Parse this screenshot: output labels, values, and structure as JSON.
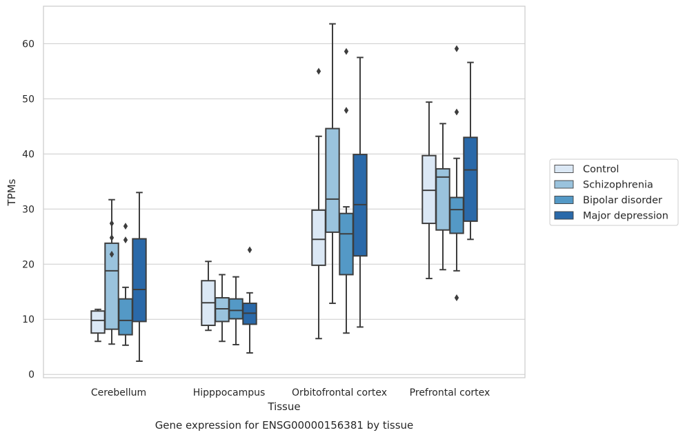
{
  "chart_data": {
    "type": "box",
    "title": "Gene expression for ENSG00000156381 by tissue",
    "xlabel": "Tissue",
    "ylabel": "TPMs",
    "ylim": [
      -0.6,
      66.8
    ],
    "yticks": [
      0,
      10,
      20,
      30,
      40,
      50,
      60
    ],
    "grid": "horizontal",
    "legend_placement": "right",
    "categories": [
      "Cerebellum",
      "Hipppocampus",
      "Orbitofrontal cortex",
      "Prefrontal cortex"
    ],
    "series": [
      {
        "name": "Control",
        "color": "#dbe8f5",
        "boxes": [
          {
            "whisker_low": 6.0,
            "q1": 7.5,
            "median": 9.8,
            "q3": 11.5,
            "whisker_high": 11.8,
            "outliers": []
          },
          {
            "whisker_low": 8.0,
            "q1": 8.9,
            "median": 13.0,
            "q3": 17.0,
            "whisker_high": 20.5,
            "outliers": []
          },
          {
            "whisker_low": 6.5,
            "q1": 19.8,
            "median": 24.5,
            "q3": 29.8,
            "whisker_high": 43.2,
            "outliers": [
              55.0
            ]
          },
          {
            "whisker_low": 17.4,
            "q1": 27.4,
            "median": 33.4,
            "q3": 39.7,
            "whisker_high": 49.4,
            "outliers": []
          }
        ]
      },
      {
        "name": "Schizophrenia",
        "color": "#9ac3dd",
        "boxes": [
          {
            "whisker_low": 5.5,
            "q1": 8.2,
            "median": 18.8,
            "q3": 23.8,
            "whisker_high": 31.7,
            "outliers": [
              21.8,
              24.8,
              27.4
            ]
          },
          {
            "whisker_low": 6.0,
            "q1": 9.6,
            "median": 11.9,
            "q3": 13.9,
            "whisker_high": 18.1,
            "outliers": []
          },
          {
            "whisker_low": 12.9,
            "q1": 25.8,
            "median": 31.8,
            "q3": 44.6,
            "whisker_high": 63.6,
            "outliers": []
          },
          {
            "whisker_low": 19.0,
            "q1": 26.2,
            "median": 35.8,
            "q3": 37.3,
            "whisker_high": 45.5,
            "outliers": []
          }
        ]
      },
      {
        "name": "Bipolar disorder",
        "color": "#5499c6",
        "boxes": [
          {
            "whisker_low": 5.3,
            "q1": 7.2,
            "median": 9.8,
            "q3": 13.7,
            "whisker_high": 15.8,
            "outliers": [
              24.4,
              26.9
            ]
          },
          {
            "whisker_low": 5.4,
            "q1": 10.1,
            "median": 11.6,
            "q3": 13.7,
            "whisker_high": 17.7,
            "outliers": []
          },
          {
            "whisker_low": 7.5,
            "q1": 18.1,
            "median": 25.5,
            "q3": 29.2,
            "whisker_high": 30.4,
            "outliers": [
              47.9,
              58.6
            ]
          },
          {
            "whisker_low": 18.8,
            "q1": 25.6,
            "median": 29.9,
            "q3": 32.1,
            "whisker_high": 39.2,
            "outliers": [
              13.9,
              47.6,
              59.1
            ]
          }
        ]
      },
      {
        "name": "Major depression",
        "color": "#2a69a9",
        "boxes": [
          {
            "whisker_low": 2.4,
            "q1": 9.6,
            "median": 15.4,
            "q3": 24.6,
            "whisker_high": 33.0,
            "outliers": []
          },
          {
            "whisker_low": 3.9,
            "q1": 9.1,
            "median": 11.1,
            "q3": 12.9,
            "whisker_high": 14.8,
            "outliers": [
              22.6
            ]
          },
          {
            "whisker_low": 8.6,
            "q1": 21.5,
            "median": 30.8,
            "q3": 39.9,
            "whisker_high": 57.5,
            "outliers": []
          },
          {
            "whisker_low": 24.5,
            "q1": 27.8,
            "median": 37.1,
            "q3": 43.0,
            "whisker_high": 56.6,
            "outliers": []
          }
        ]
      }
    ]
  }
}
